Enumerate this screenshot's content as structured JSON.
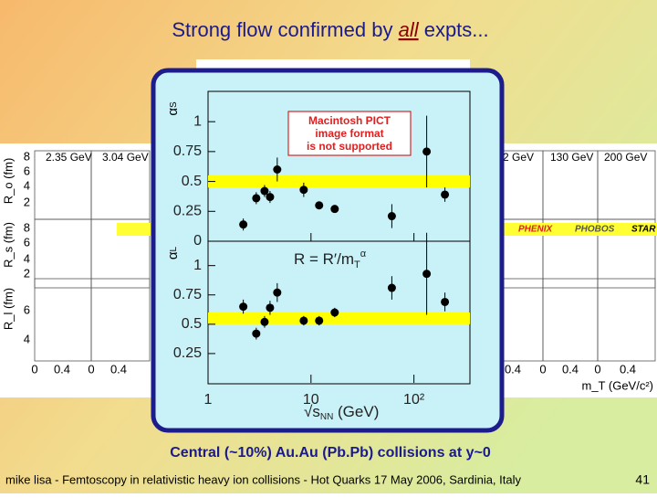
{
  "slide": {
    "title": [
      "Strong flow confirmed by ",
      "all",
      " expts..."
    ],
    "caption": "Central (~10%) Au.Au (Pb.Pb) collisions at y~0",
    "footer": "mike lisa - Femtoscopy in relativistic heavy ion collisions - Hot Quarks 17 May 2006, Sardinia, Italy",
    "page_number": "41",
    "pict_notice": [
      "Macintosh PICT",
      "image format",
      "is not supported"
    ]
  },
  "background_figure": {
    "left_panels": [
      "2.35 GeV",
      "3.04 GeV"
    ],
    "right_panels": [
      "2 GeV",
      "130 GeV",
      "200 GeV"
    ],
    "y_labels": [
      "R_o (fm)",
      "R_s (fm)",
      "R_l (fm)"
    ],
    "left_y_ticks": [
      "8",
      "6",
      "4",
      "2",
      "8",
      "6",
      "4",
      "2",
      "6",
      "4"
    ],
    "left_x_ticks": [
      "0",
      "0.4",
      "0",
      "0.4"
    ],
    "right_x_ticks": [
      "0.4",
      "0",
      "0.4",
      "0",
      "0.4"
    ],
    "legend": [
      "PHENIX",
      "PHOBOS",
      "STAR"
    ],
    "x_label": "m_T (GeV/c²)"
  },
  "chart_data": [
    {
      "type": "scatter",
      "ylabel": [
        "α",
        "S"
      ],
      "xscale": "log",
      "x": [
        2.2,
        2.94,
        3.54,
        4.0,
        4.7,
        8.5,
        12,
        17,
        61,
        133,
        200
      ],
      "values": [
        0.14,
        0.36,
        0.42,
        0.37,
        0.6,
        0.43,
        0.3,
        0.27,
        0.21,
        0.75,
        0.39
      ],
      "errors": [
        0.05,
        0.05,
        0.05,
        0.05,
        0.1,
        0.06,
        0.03,
        0.03,
        0.1,
        0.3,
        0.06
      ],
      "band": [
        0.45,
        0.55
      ],
      "color": "#000000",
      "band_color": "#ffff00",
      "xlim": [
        1,
        350
      ],
      "ylim": [
        0,
        1.2
      ],
      "yticks": [
        0,
        0.25,
        0.5,
        0.75,
        1
      ],
      "xticks": [
        1,
        10,
        100
      ]
    },
    {
      "type": "scatter",
      "ylabel": [
        "α",
        "L"
      ],
      "xscale": "log",
      "annotation": [
        "R = R′/m",
        "T",
        "α"
      ],
      "xlabel": [
        "√s",
        "NN",
        " (GeV)"
      ],
      "x": [
        2.2,
        2.94,
        3.54,
        4.0,
        4.7,
        8.5,
        12,
        17,
        61,
        133,
        200
      ],
      "values": [
        0.65,
        0.42,
        0.52,
        0.64,
        0.77,
        0.53,
        0.53,
        0.6,
        0.81,
        0.93,
        0.69
      ],
      "errors": [
        0.06,
        0.05,
        0.05,
        0.06,
        0.08,
        0.04,
        0.04,
        0.04,
        0.1,
        0.35,
        0.08
      ],
      "band": [
        0.5,
        0.6
      ],
      "color": "#000000",
      "band_color": "#ffff00",
      "xlim": [
        1,
        350
      ],
      "ylim": [
        0,
        1.2
      ],
      "yticks": [
        0.25,
        0.5,
        0.75,
        1
      ],
      "xticks": [
        1,
        10,
        {
          "value": 100,
          "label": "10²"
        }
      ]
    }
  ]
}
